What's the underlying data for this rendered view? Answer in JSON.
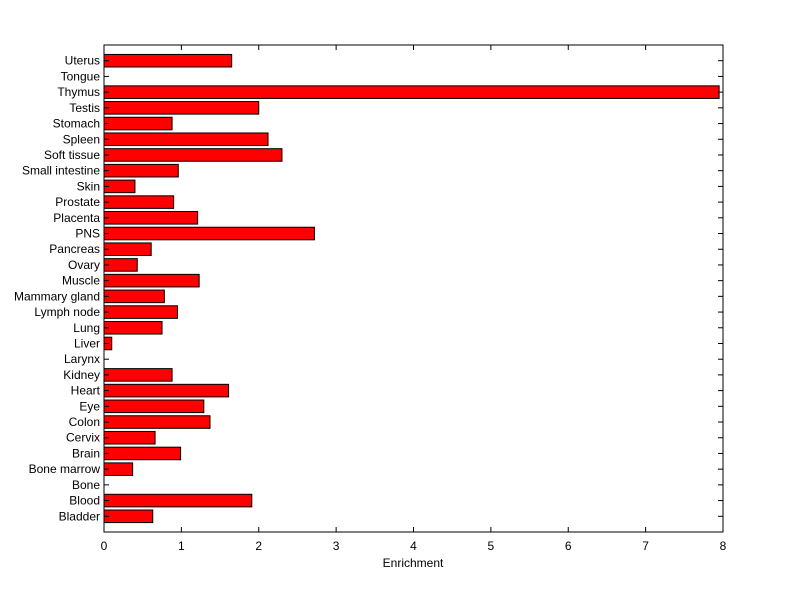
{
  "chart_data": {
    "type": "bar",
    "orientation": "horizontal",
    "title": "",
    "xlabel": "Enrichment",
    "ylabel": "",
    "xlim": [
      0,
      8
    ],
    "xticks": [
      0,
      1,
      2,
      3,
      4,
      5,
      6,
      7,
      8
    ],
    "grid": false,
    "bar_color": "#ff0000",
    "bar_edge_color": "#000000",
    "categories": [
      "Uterus",
      "Tongue",
      "Thymus",
      "Testis",
      "Stomach",
      "Spleen",
      "Soft tissue",
      "Small intestine",
      "Skin",
      "Prostate",
      "Placenta",
      "PNS",
      "Pancreas",
      "Ovary",
      "Muscle",
      "Mammary gland",
      "Lymph node",
      "Lung",
      "Liver",
      "Larynx",
      "Kidney",
      "Heart",
      "Eye",
      "Colon",
      "Cervix",
      "Brain",
      "Bone marrow",
      "Bone",
      "Blood",
      "Bladder"
    ],
    "values": [
      1.65,
      0,
      7.95,
      2.0,
      0.88,
      2.12,
      2.3,
      0.96,
      0.4,
      0.9,
      1.21,
      2.72,
      0.61,
      0.43,
      1.23,
      0.78,
      0.95,
      0.75,
      0.1,
      0,
      0.88,
      1.61,
      1.29,
      1.37,
      0.66,
      0.99,
      0.37,
      0,
      1.91,
      0.63
    ]
  }
}
